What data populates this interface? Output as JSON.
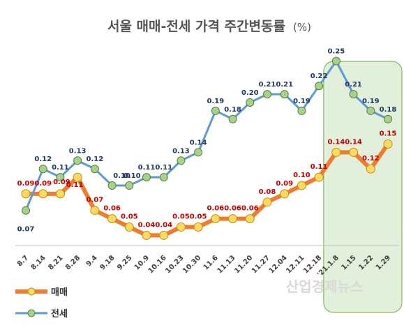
{
  "chart_data": {
    "type": "line",
    "title": "서울 매매-전세 가격 주간변동률",
    "title_unit": "(%)",
    "categories": [
      "8.7",
      "8.14",
      "8.21",
      "8.28",
      "9.4",
      "9.18",
      "9.25",
      "10.9",
      "10.16",
      "10.23",
      "10.30",
      "11.6",
      "11.13",
      "11.20",
      "11.27",
      "12.04",
      "12.11",
      "12.18",
      "'21.1.8",
      "1.15",
      "1.22",
      "1.29"
    ],
    "series": [
      {
        "name": "매매",
        "color": "#ed7d31",
        "marker_color": "#ffd966",
        "values": [
          0.09,
          0.09,
          0.09,
          0.11,
          0.07,
          0.06,
          0.05,
          0.04,
          0.04,
          0.05,
          0.05,
          0.06,
          0.06,
          0.06,
          0.08,
          0.09,
          0.1,
          0.11,
          0.14,
          0.14,
          0.12,
          0.15
        ]
      },
      {
        "name": "전세",
        "color": "#5b9bd5",
        "marker_color": "#a9d18e",
        "values": [
          0.07,
          0.12,
          0.11,
          0.13,
          0.12,
          0.1,
          0.1,
          0.11,
          0.11,
          0.13,
          0.14,
          0.19,
          0.18,
          0.2,
          0.21,
          0.21,
          0.19,
          0.22,
          0.25,
          0.21,
          0.19,
          0.18
        ]
      }
    ],
    "highlight_range": [
      "'21.1.8",
      "1.29"
    ],
    "highlight_color": "#e2efda",
    "legend_position": "bottom-left",
    "grid": false
  },
  "watermark": "산업경제뉴스"
}
